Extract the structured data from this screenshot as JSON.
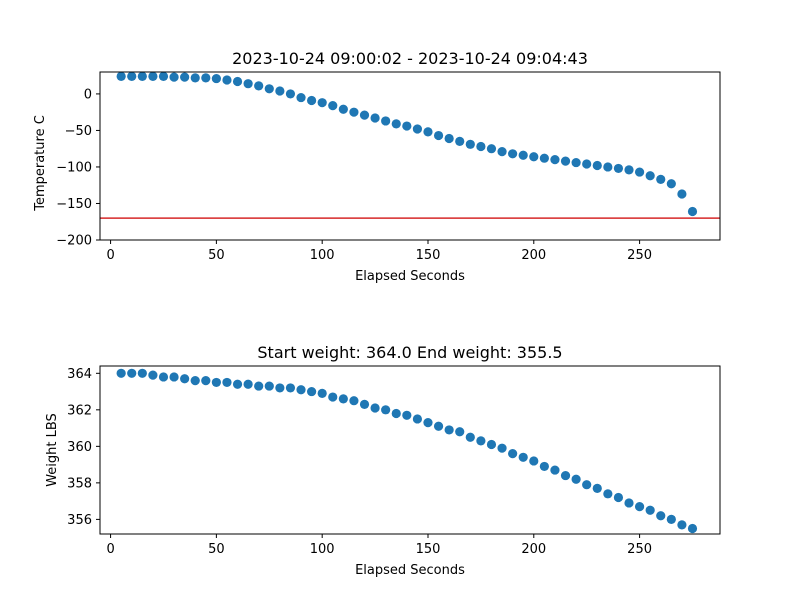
{
  "chart_data": [
    {
      "type": "scatter",
      "title": "2023-10-24 09:00:02 - 2023-10-24 09:04:43",
      "xlabel": "Elapsed Seconds",
      "ylabel": "Temperature C",
      "xlim": [
        -5,
        288
      ],
      "ylim": [
        -200,
        30
      ],
      "xticks": [
        0,
        50,
        100,
        150,
        200,
        250
      ],
      "yticks": [
        -200,
        -150,
        -100,
        -50,
        0
      ],
      "ytick_labels": [
        "−200",
        "−150",
        "−100",
        "−50",
        "0"
      ],
      "grid": false,
      "marker_color": "#1f77b4",
      "reference_line": {
        "y": -170,
        "color": "#d62728"
      },
      "series": [
        {
          "x": [
            5,
            10,
            15,
            20,
            25,
            30,
            35,
            40,
            45,
            50,
            55,
            60,
            65,
            70,
            75,
            80,
            85,
            90,
            95,
            100,
            105,
            110,
            115,
            120,
            125,
            130,
            135,
            140,
            145,
            150,
            155,
            160,
            165,
            170,
            175,
            180,
            185,
            190,
            195,
            200,
            205,
            210,
            215,
            220,
            225,
            230,
            235,
            240,
            245,
            250,
            255,
            260,
            265,
            270,
            275
          ],
          "y": [
            24,
            24,
            24,
            24,
            24,
            23,
            23,
            22,
            22,
            21,
            19,
            17,
            14,
            11,
            7,
            4,
            0,
            -5,
            -9,
            -12,
            -16,
            -21,
            -25,
            -29,
            -33,
            -37,
            -41,
            -44,
            -48,
            -52,
            -57,
            -61,
            -65,
            -69,
            -72,
            -75,
            -79,
            -82,
            -84,
            -86,
            -88,
            -90,
            -92,
            -94,
            -96,
            -98,
            -100,
            -102,
            -104,
            -107,
            -112,
            -117,
            -123,
            -137,
            -161
          ]
        }
      ]
    },
    {
      "type": "scatter",
      "title": "Start weight: 364.0 End weight: 355.5",
      "xlabel": "Elapsed Seconds",
      "ylabel": "Weight LBS",
      "xlim": [
        -5,
        288
      ],
      "ylim": [
        355.2,
        364.4
      ],
      "xticks": [
        0,
        50,
        100,
        150,
        200,
        250
      ],
      "yticks": [
        356,
        358,
        360,
        362,
        364
      ],
      "grid": false,
      "marker_color": "#1f77b4",
      "series": [
        {
          "x": [
            5,
            10,
            15,
            20,
            25,
            30,
            35,
            40,
            45,
            50,
            55,
            60,
            65,
            70,
            75,
            80,
            85,
            90,
            95,
            100,
            105,
            110,
            115,
            120,
            125,
            130,
            135,
            140,
            145,
            150,
            155,
            160,
            165,
            170,
            175,
            180,
            185,
            190,
            195,
            200,
            205,
            210,
            215,
            220,
            225,
            230,
            235,
            240,
            245,
            250,
            255,
            260,
            265,
            270,
            275
          ],
          "y": [
            364.0,
            364.0,
            364.0,
            363.9,
            363.8,
            363.8,
            363.7,
            363.6,
            363.6,
            363.5,
            363.5,
            363.4,
            363.4,
            363.3,
            363.3,
            363.2,
            363.2,
            363.1,
            363.0,
            362.9,
            362.7,
            362.6,
            362.5,
            362.3,
            362.1,
            362.0,
            361.8,
            361.7,
            361.5,
            361.3,
            361.1,
            360.9,
            360.8,
            360.5,
            360.3,
            360.1,
            359.9,
            359.6,
            359.4,
            359.2,
            358.9,
            358.7,
            358.4,
            358.2,
            357.9,
            357.7,
            357.4,
            357.2,
            356.9,
            356.7,
            356.5,
            356.2,
            356.0,
            355.7,
            355.5
          ]
        }
      ]
    }
  ]
}
